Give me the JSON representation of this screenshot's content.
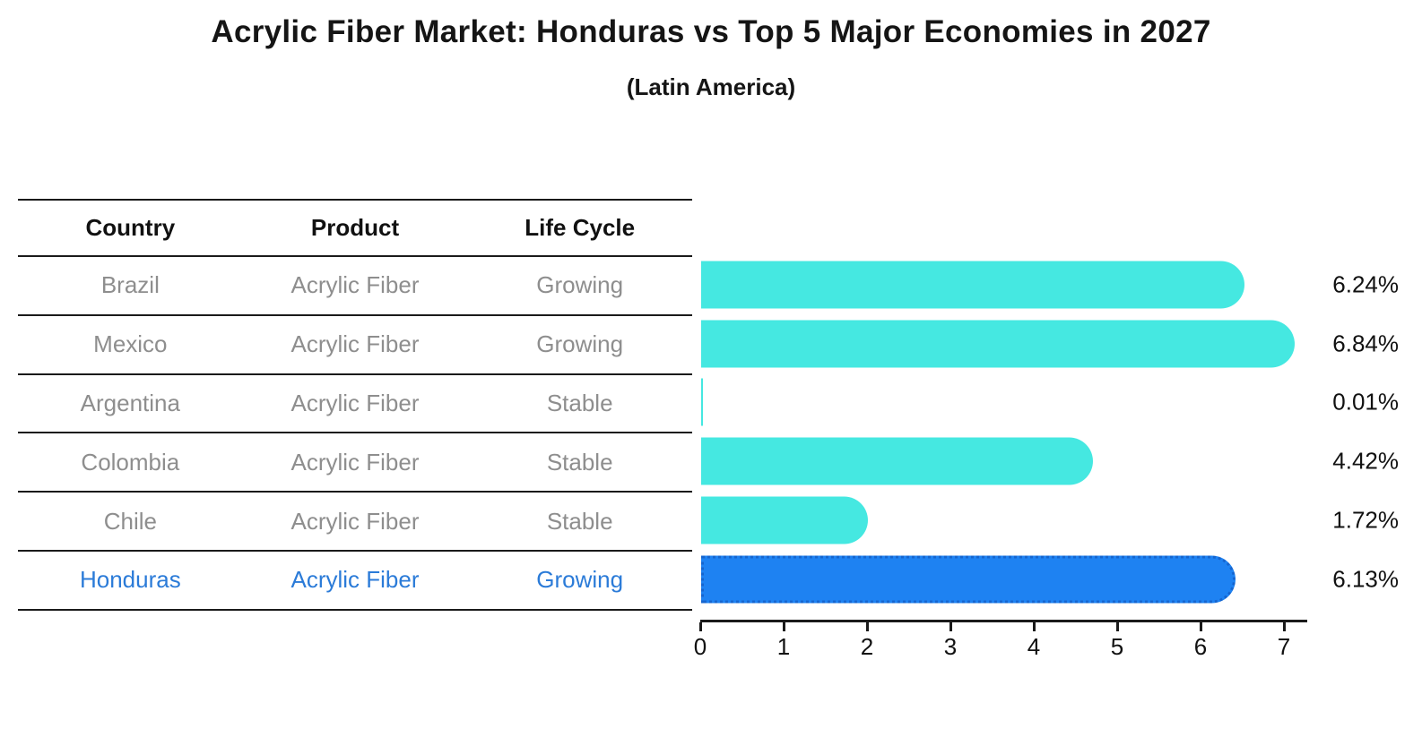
{
  "title": "Acrylic Fiber Market: Honduras vs Top 5 Major Economies in 2027",
  "subtitle": "(Latin America)",
  "table": {
    "headers": [
      "Country",
      "Product",
      "Life Cycle"
    ],
    "rows": [
      {
        "country": "Brazil",
        "product": "Acrylic Fiber",
        "life_cycle": "Growing",
        "highlight": false
      },
      {
        "country": "Mexico",
        "product": "Acrylic Fiber",
        "life_cycle": "Growing",
        "highlight": false
      },
      {
        "country": "Argentina",
        "product": "Acrylic Fiber",
        "life_cycle": "Stable",
        "highlight": false
      },
      {
        "country": "Colombia",
        "product": "Acrylic Fiber",
        "life_cycle": "Stable",
        "highlight": false
      },
      {
        "country": "Chile",
        "product": "Acrylic Fiber",
        "life_cycle": "Stable",
        "highlight": false
      },
      {
        "country": "Honduras",
        "product": "Acrylic Fiber",
        "life_cycle": "Growing",
        "highlight": true
      }
    ]
  },
  "chart_data": {
    "type": "bar",
    "orientation": "horizontal",
    "title": "Acrylic Fiber Market: Honduras vs Top 5 Major Economies in 2027",
    "subtitle": "(Latin America)",
    "categories": [
      "Brazil",
      "Mexico",
      "Argentina",
      "Colombia",
      "Chile",
      "Honduras"
    ],
    "values": [
      6.24,
      6.84,
      0.01,
      4.42,
      1.72,
      6.13
    ],
    "value_labels": [
      "6.24%",
      "6.84%",
      "0.01%",
      "4.42%",
      "1.72%",
      "6.13%"
    ],
    "xlabel": "",
    "ylabel": "",
    "xlim": [
      0,
      7.25
    ],
    "x_ticks": [
      "0",
      "1",
      "2",
      "3",
      "4",
      "5",
      "6",
      "7"
    ],
    "grid": "off",
    "legend": "none",
    "highlight_index": 5,
    "bar_color": "#45e8e1",
    "highlight_color": "#1e82f2",
    "highlight_border_color": "#1565cf",
    "highlight_text_color": "#2b7bd8"
  }
}
